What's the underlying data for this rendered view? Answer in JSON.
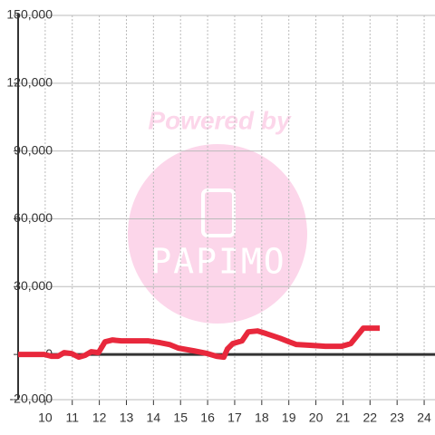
{
  "chart_data": {
    "type": "line",
    "x": [
      9,
      9.97,
      10.23,
      10.47,
      10.7,
      10.97,
      11.24,
      11.47,
      11.7,
      11.97,
      12.21,
      12.48,
      12.81,
      13.82,
      14.25,
      14.59,
      14.92,
      15.49,
      15.99,
      16.33,
      16.6,
      16.73,
      16.93,
      17.27,
      17.5,
      17.84,
      18.17,
      18.67,
      19.01,
      19.28,
      19.85,
      20.35,
      20.95,
      21.29,
      21.75,
      22.36
    ],
    "series": [
      {
        "color": "#e8283c",
        "values": [
          0,
          0,
          -800,
          -800,
          800,
          400,
          -1200,
          -400,
          1200,
          800,
          5600,
          6400,
          6000,
          6000,
          5200,
          4400,
          2800,
          1600,
          400,
          -800,
          -1200,
          2400,
          4800,
          6000,
          10000,
          10400,
          9200,
          7200,
          5600,
          4400,
          4000,
          3600,
          3600,
          4800,
          11600,
          11600
        ]
      }
    ],
    "xlim": [
      9,
      24.4
    ],
    "xticks": [
      10,
      11,
      12,
      13,
      14,
      15,
      16,
      17,
      18,
      19,
      20,
      21,
      22,
      23,
      24
    ],
    "ylim": [
      -20000,
      150000
    ],
    "yticks": [
      {
        "value": -20000,
        "label": "-20,000"
      },
      0,
      {
        "value": 30000,
        "label": "30,000"
      },
      {
        "value": 60000,
        "label": "60,000"
      },
      {
        "value": 90000,
        "label": "90,000"
      },
      {
        "value": 120000,
        "label": "120,000"
      },
      {
        "value": 150000,
        "label": "150,000"
      }
    ],
    "grid": true,
    "watermark": {
      "text": "Powered by",
      "logo": "PAPIMO"
    }
  }
}
